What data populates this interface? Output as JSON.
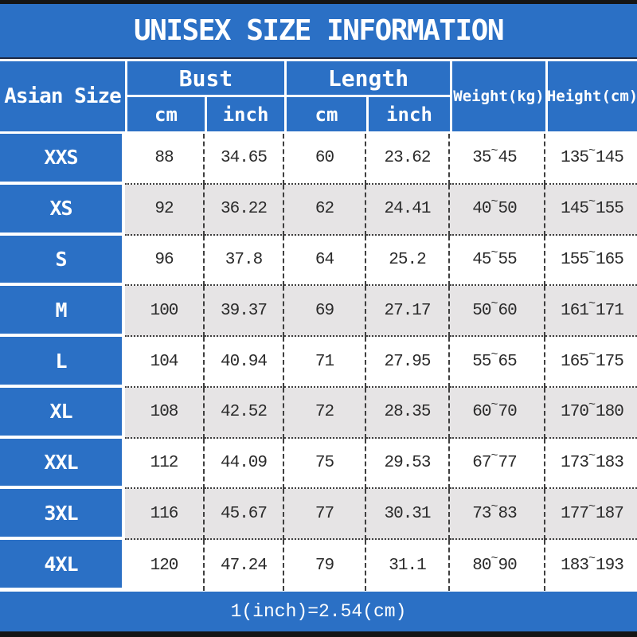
{
  "title": "UNISEX SIZE INFORMATION",
  "footer": {
    "note": "1(inch)=2.54(cm)"
  },
  "colors": {
    "blue": "#2b70c5",
    "alt_row": "#e6e4e5",
    "border_bar": "#151515",
    "text": "#2b2b2b"
  },
  "table": {
    "size_header": "Asian Size",
    "groups": [
      {
        "label": "Bust",
        "sub": [
          "cm",
          "inch"
        ]
      },
      {
        "label": "Length",
        "sub": [
          "cm",
          "inch"
        ]
      }
    ],
    "single_headers": [
      "Weight(kg)",
      "Height(cm)"
    ],
    "tilde": "~",
    "rows": [
      {
        "size": "XXS",
        "bust_cm": "88",
        "bust_inch": "34.65",
        "length_cm": "60",
        "length_inch": "23.62",
        "weight_min": "35",
        "weight_max": "45",
        "height_min": "135",
        "height_max": "145"
      },
      {
        "size": "XS",
        "bust_cm": "92",
        "bust_inch": "36.22",
        "length_cm": "62",
        "length_inch": "24.41",
        "weight_min": "40",
        "weight_max": "50",
        "height_min": "145",
        "height_max": "155"
      },
      {
        "size": "S",
        "bust_cm": "96",
        "bust_inch": "37.8",
        "length_cm": "64",
        "length_inch": "25.2",
        "weight_min": "45",
        "weight_max": "55",
        "height_min": "155",
        "height_max": "165"
      },
      {
        "size": "M",
        "bust_cm": "100",
        "bust_inch": "39.37",
        "length_cm": "69",
        "length_inch": "27.17",
        "weight_min": "50",
        "weight_max": "60",
        "height_min": "161",
        "height_max": "171"
      },
      {
        "size": "L",
        "bust_cm": "104",
        "bust_inch": "40.94",
        "length_cm": "71",
        "length_inch": "27.95",
        "weight_min": "55",
        "weight_max": "65",
        "height_min": "165",
        "height_max": "175"
      },
      {
        "size": "XL",
        "bust_cm": "108",
        "bust_inch": "42.52",
        "length_cm": "72",
        "length_inch": "28.35",
        "weight_min": "60",
        "weight_max": "70",
        "height_min": "170",
        "height_max": "180"
      },
      {
        "size": "XXL",
        "bust_cm": "112",
        "bust_inch": "44.09",
        "length_cm": "75",
        "length_inch": "29.53",
        "weight_min": "67",
        "weight_max": "77",
        "height_min": "173",
        "height_max": "183"
      },
      {
        "size": "3XL",
        "bust_cm": "116",
        "bust_inch": "45.67",
        "length_cm": "77",
        "length_inch": "30.31",
        "weight_min": "73",
        "weight_max": "83",
        "height_min": "177",
        "height_max": "187"
      },
      {
        "size": "4XL",
        "bust_cm": "120",
        "bust_inch": "47.24",
        "length_cm": "79",
        "length_inch": "31.1",
        "weight_min": "80",
        "weight_max": "90",
        "height_min": "183",
        "height_max": "193"
      }
    ]
  },
  "chart_data": {
    "type": "table",
    "title": "UNISEX SIZE INFORMATION",
    "columns": [
      "Asian Size",
      "Bust cm",
      "Bust inch",
      "Length cm",
      "Length inch",
      "Weight(kg)",
      "Height(cm)"
    ],
    "rows": [
      [
        "XXS",
        88,
        34.65,
        60,
        23.62,
        "35~45",
        "135~145"
      ],
      [
        "XS",
        92,
        36.22,
        62,
        24.41,
        "40~50",
        "145~155"
      ],
      [
        "S",
        96,
        37.8,
        64,
        25.2,
        "45~55",
        "155~165"
      ],
      [
        "M",
        100,
        39.37,
        69,
        27.17,
        "50~60",
        "161~171"
      ],
      [
        "L",
        104,
        40.94,
        71,
        27.95,
        "55~65",
        "165~175"
      ],
      [
        "XL",
        108,
        42.52,
        72,
        28.35,
        "60~70",
        "170~180"
      ],
      [
        "XXL",
        112,
        44.09,
        75,
        29.53,
        "67~77",
        "173~183"
      ],
      [
        "3XL",
        116,
        45.67,
        77,
        30.31,
        "73~83",
        "177~187"
      ],
      [
        "4XL",
        120,
        47.24,
        79,
        31.1,
        "80~90",
        "183~193"
      ]
    ],
    "note": "1(inch)=2.54(cm)",
    "layout": "blue header with grouped Bust/Length cm-inch subcolumns; alternating white/gray data rows; dashed column and dotted row separators"
  }
}
